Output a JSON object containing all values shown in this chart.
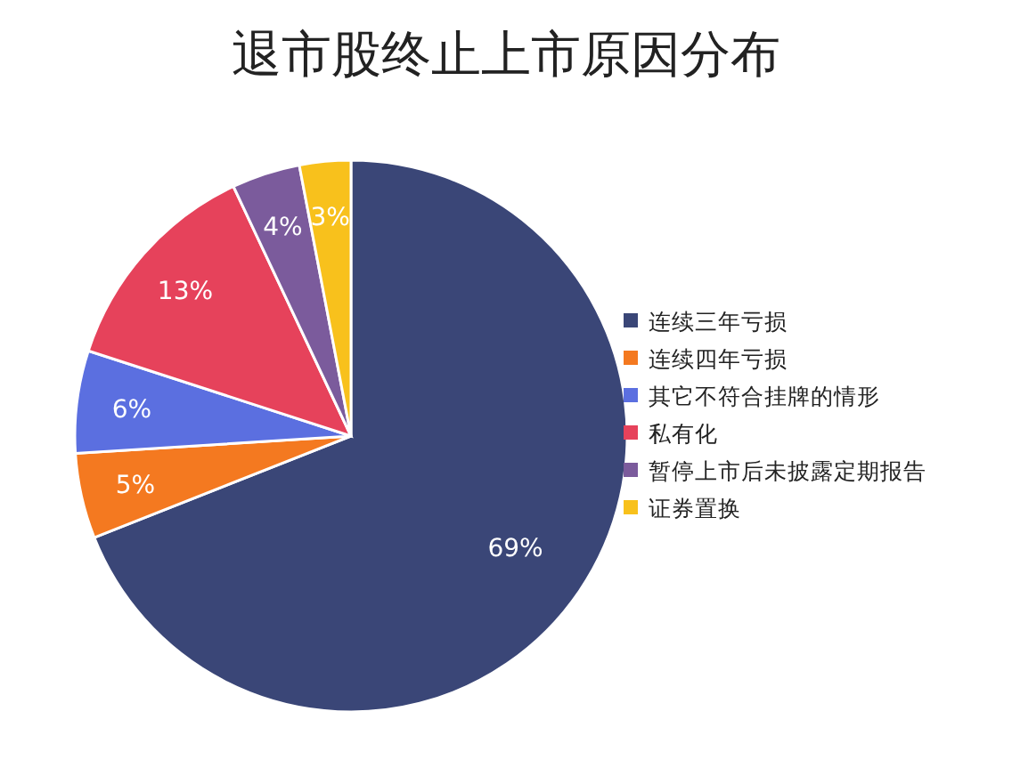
{
  "chart_data": {
    "type": "pie",
    "title": "退市股终止上市原因分布",
    "categories": [
      "连续三年亏损",
      "连续四年亏损",
      "其它不符合挂牌的情形",
      "私有化",
      "暂停上市后未披露定期报告",
      "证券置换"
    ],
    "values": [
      69,
      5,
      6,
      13,
      4,
      3
    ],
    "value_labels": [
      "69%",
      "5%",
      "6%",
      "13%",
      "4%",
      "3%"
    ],
    "colors": [
      "#3a4677",
      "#f47920",
      "#5b6fe0",
      "#e6425b",
      "#7b5b9c",
      "#f8c11c"
    ],
    "legend": "right"
  }
}
